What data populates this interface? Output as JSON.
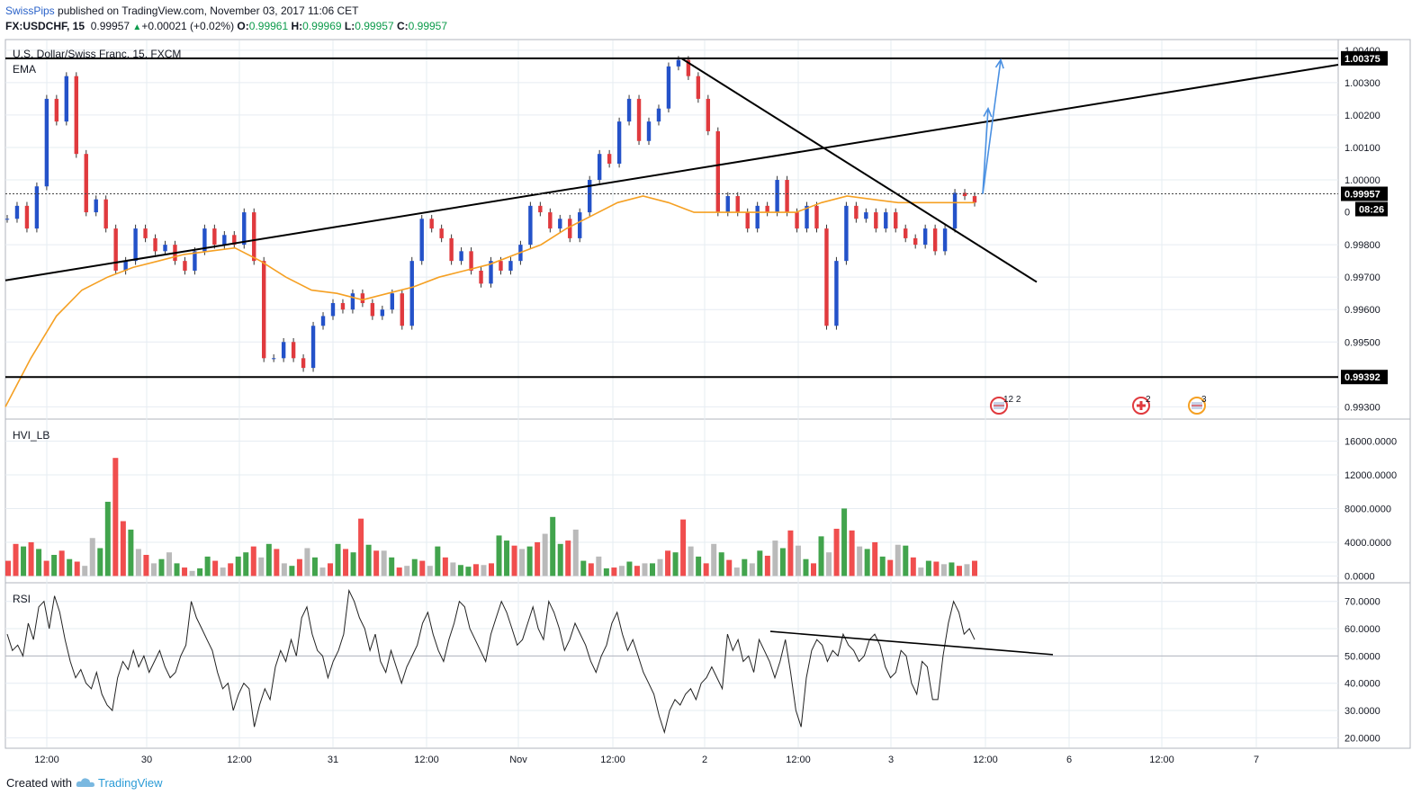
{
  "header": {
    "author": "SwissPips",
    "published": "published on TradingView.com, November 03, 2017 11:06 CET",
    "symbol": "FX:USDCHF, 15",
    "last": "0.99957",
    "change": "+0.00021 (+0.02%)",
    "o_label": "O:",
    "o_val": "0.99961",
    "h_label": "H:",
    "h_val": "0.99969",
    "l_label": "L:",
    "l_val": "0.99957",
    "c_label": "C:",
    "c_val": "0.99957"
  },
  "footer": {
    "created": "Created with",
    "brand": "TradingView"
  },
  "colors": {
    "up": "#2452c9",
    "down": "#e03a3e",
    "ema": "#f5a023",
    "vol_up": "#2e9a3a",
    "vol_down": "#ee3b3b",
    "vol_neutral": "#b3b3b3",
    "arrow": "#4a90e2"
  },
  "chart_data": [
    {
      "type": "line",
      "name": "price",
      "title": "U.S. Dollar/Swiss Franc, 15, FXCM",
      "indicator_label": "EMA",
      "ylim": [
        0.99265,
        1.0043
      ],
      "y_ticks": [
        "1.00400",
        "1.00300",
        "1.00200",
        "1.00100",
        "1.00000",
        "0.99800",
        "0.99700",
        "0.99600",
        "0.99500",
        "0.99300"
      ],
      "last_price_label": "0.99957",
      "countdown": "08:26",
      "hidden_tick": "0",
      "horizontal_levels": [
        "1.00375",
        "0.99392"
      ],
      "x_ticks": [
        "12:00",
        "30",
        "12:00",
        "31",
        "12:00",
        "Nov",
        "12:00",
        "2",
        "12:00",
        "3",
        "12:00",
        "6",
        "12:00",
        "7"
      ],
      "close_series": [
        0.9988,
        0.9992,
        0.9985,
        0.9998,
        1.0025,
        1.0018,
        1.0032,
        1.0008,
        0.999,
        0.9994,
        0.9985,
        0.9972,
        0.9975,
        0.9985,
        0.9982,
        0.9978,
        0.998,
        0.9975,
        0.9972,
        0.9978,
        0.9985,
        0.998,
        0.9983,
        0.998,
        0.999,
        0.9975,
        0.9945,
        0.9945,
        0.995,
        0.9945,
        0.9942,
        0.9955,
        0.9958,
        0.9962,
        0.996,
        0.9965,
        0.9962,
        0.9958,
        0.996,
        0.9965,
        0.9955,
        0.9975,
        0.9988,
        0.9985,
        0.9982,
        0.9975,
        0.9978,
        0.9972,
        0.9968,
        0.9975,
        0.9972,
        0.9975,
        0.998,
        0.9992,
        0.999,
        0.9985,
        0.9988,
        0.9982,
        0.999,
        1.0,
        1.0008,
        1.0005,
        1.0018,
        1.0025,
        1.0012,
        1.0018,
        1.0022,
        1.0035,
        1.0037,
        1.0032,
        1.0025,
        1.0015,
        0.999,
        0.9995,
        0.999,
        0.9985,
        0.9992,
        0.999,
        1.0,
        0.999,
        0.9985,
        0.9992,
        0.9985,
        0.9955,
        0.9975,
        0.9992,
        0.9988,
        0.999,
        0.9985,
        0.999,
        0.9985,
        0.9982,
        0.998,
        0.9985,
        0.9978,
        0.9985,
        0.9996,
        0.9995,
        0.9993
      ],
      "ema_series": [
        0.993,
        0.9945,
        0.9958,
        0.9966,
        0.997,
        0.9973,
        0.9975,
        0.9977,
        0.9978,
        0.9979,
        0.9975,
        0.997,
        0.9966,
        0.9965,
        0.9963,
        0.9965,
        0.9967,
        0.997,
        0.9972,
        0.9974,
        0.9977,
        0.998,
        0.9985,
        0.9989,
        0.9993,
        0.9995,
        0.9993,
        0.999,
        0.999,
        0.999,
        0.999,
        0.999,
        0.9993,
        0.9995,
        0.9994,
        0.9993,
        0.9993,
        0.9993,
        0.9993
      ],
      "trendlines": [
        {
          "from": [
            "29 03:00",
            0.9969
          ],
          "to": [
            "3 13:00",
            1.00355
          ]
        },
        {
          "from": [
            "1 18:45",
            1.00375
          ],
          "to": [
            "3 04:15",
            0.99685
          ]
        }
      ],
      "projection_arrows": [
        {
          "from": [
            "3 11:30",
            0.9996
          ],
          "to": [
            "3 12:00",
            1.0022
          ]
        },
        {
          "from": [
            "3 11:30",
            0.9996
          ],
          "to": [
            "3 12:30",
            1.0037
          ]
        }
      ],
      "event_markers": [
        {
          "label": "12",
          "label2": "2",
          "flag": "US"
        },
        {
          "label": "2",
          "flag": "CH"
        },
        {
          "label": "3",
          "flag": "US"
        }
      ]
    },
    {
      "type": "bar",
      "name": "volume",
      "title": "HVI_LB",
      "ylim": [
        -700,
        18500
      ],
      "y_ticks": [
        "16000.0000",
        "12000.0000",
        "8000.0000",
        "4000.0000",
        "0.0000"
      ],
      "values": [
        1800,
        3800,
        3500,
        4000,
        3200,
        1800,
        2500,
        3000,
        2000,
        1700,
        1200,
        4500,
        3300,
        8800,
        14000,
        6500,
        5500,
        3200,
        2500,
        1500,
        2000,
        2800,
        1500,
        1000,
        600,
        900,
        2300,
        1800,
        1000,
        1500,
        2300,
        2800,
        3500,
        2200,
        3800,
        3200,
        1500,
        1200,
        2000,
        3300,
        2200,
        1000,
        1500,
        3800,
        3200,
        2800,
        6800,
        3700,
        3000,
        3000,
        2200,
        1000,
        1200,
        2000,
        1800,
        1200,
        3500,
        2200,
        1600,
        1300,
        1100,
        1400,
        1300,
        1500,
        4800,
        4200,
        3600,
        3200,
        3500,
        4000,
        5000,
        7000,
        3800,
        4200,
        5500,
        1800,
        1500,
        2300,
        900,
        1000,
        1200,
        1700,
        1200,
        1500,
        1500,
        2000,
        3000,
        2800,
        6700,
        3500,
        2300,
        1500,
        3800,
        2800,
        1900,
        1000,
        2000,
        1500,
        3000,
        2400,
        4200,
        3300,
        5400,
        3600,
        2000,
        1500,
        4700,
        2800,
        5600,
        8000,
        5400,
        3500,
        3200,
        4000,
        2300,
        1900,
        3700,
        3600,
        2200,
        1000,
        1800,
        1700,
        1400,
        1600,
        1200,
        1400,
        1800
      ],
      "signs": [
        "d",
        "d",
        "u",
        "d",
        "u",
        "d",
        "u",
        "d",
        "u",
        "d",
        "n",
        "n",
        "u",
        "u",
        "d",
        "d",
        "u",
        "n",
        "d",
        "n",
        "u",
        "n",
        "u",
        "d",
        "n",
        "u",
        "u",
        "d",
        "n",
        "d",
        "u",
        "u",
        "d",
        "n",
        "u",
        "d",
        "n",
        "u",
        "d",
        "n",
        "u",
        "n",
        "d",
        "u",
        "d",
        "u",
        "d",
        "u",
        "d",
        "n",
        "u",
        "d",
        "n",
        "u",
        "d",
        "n",
        "u",
        "d",
        "n",
        "u",
        "u",
        "d",
        "n",
        "d",
        "u",
        "u",
        "d",
        "n",
        "u",
        "d",
        "n",
        "u",
        "u",
        "d",
        "n",
        "u",
        "d",
        "n",
        "u",
        "d",
        "n",
        "u",
        "d",
        "n",
        "u",
        "n",
        "d",
        "u",
        "d",
        "n",
        "u",
        "d",
        "n",
        "u",
        "d",
        "n",
        "u",
        "n",
        "u",
        "d",
        "n",
        "u",
        "d",
        "n",
        "u",
        "d",
        "u",
        "n",
        "d",
        "u",
        "d",
        "n",
        "u",
        "d",
        "u",
        "d",
        "n",
        "u",
        "d",
        "n",
        "u",
        "d",
        "n",
        "u",
        "d",
        "n",
        "d"
      ],
      "neutral_x_ticks": true
    },
    {
      "type": "line",
      "name": "rsi",
      "title": "RSI",
      "ylim": [
        16.5,
        76.5
      ],
      "y_ticks": [
        "70.0000",
        "60.0000",
        "50.0000",
        "40.0000",
        "30.0000",
        "20.0000"
      ],
      "reference_line": 50,
      "values": [
        58,
        52,
        54,
        50,
        62,
        56,
        68,
        70,
        60,
        72,
        66,
        56,
        48,
        42,
        45,
        40,
        38,
        44,
        36,
        32,
        30,
        42,
        48,
        45,
        52,
        46,
        50,
        44,
        48,
        52,
        46,
        42,
        44,
        50,
        54,
        70,
        64,
        60,
        56,
        52,
        44,
        38,
        40,
        30,
        36,
        40,
        38,
        24,
        32,
        38,
        34,
        46,
        52,
        48,
        56,
        50,
        64,
        68,
        58,
        52,
        50,
        42,
        48,
        52,
        58,
        74,
        70,
        64,
        60,
        52,
        58,
        48,
        44,
        52,
        46,
        40,
        46,
        50,
        54,
        62,
        66,
        58,
        52,
        48,
        56,
        62,
        70,
        68,
        60,
        56,
        52,
        48,
        58,
        64,
        70,
        66,
        60,
        54,
        56,
        62,
        68,
        60,
        56,
        70,
        66,
        60,
        52,
        56,
        62,
        58,
        54,
        48,
        44,
        50,
        54,
        62,
        66,
        58,
        52,
        56,
        50,
        44,
        40,
        36,
        28,
        22,
        30,
        34,
        32,
        36,
        38,
        34,
        40,
        42,
        46,
        42,
        38,
        58,
        52,
        56,
        48,
        50,
        44,
        56,
        52,
        48,
        42,
        48,
        56,
        44,
        30,
        24,
        42,
        52,
        56,
        54,
        48,
        52,
        50,
        58,
        54,
        52,
        48,
        50,
        56,
        58,
        54,
        46,
        42,
        44,
        52,
        50,
        40,
        36,
        48,
        46,
        34,
        34,
        50,
        62,
        70,
        66,
        58,
        60,
        56
      ]
    }
  ]
}
